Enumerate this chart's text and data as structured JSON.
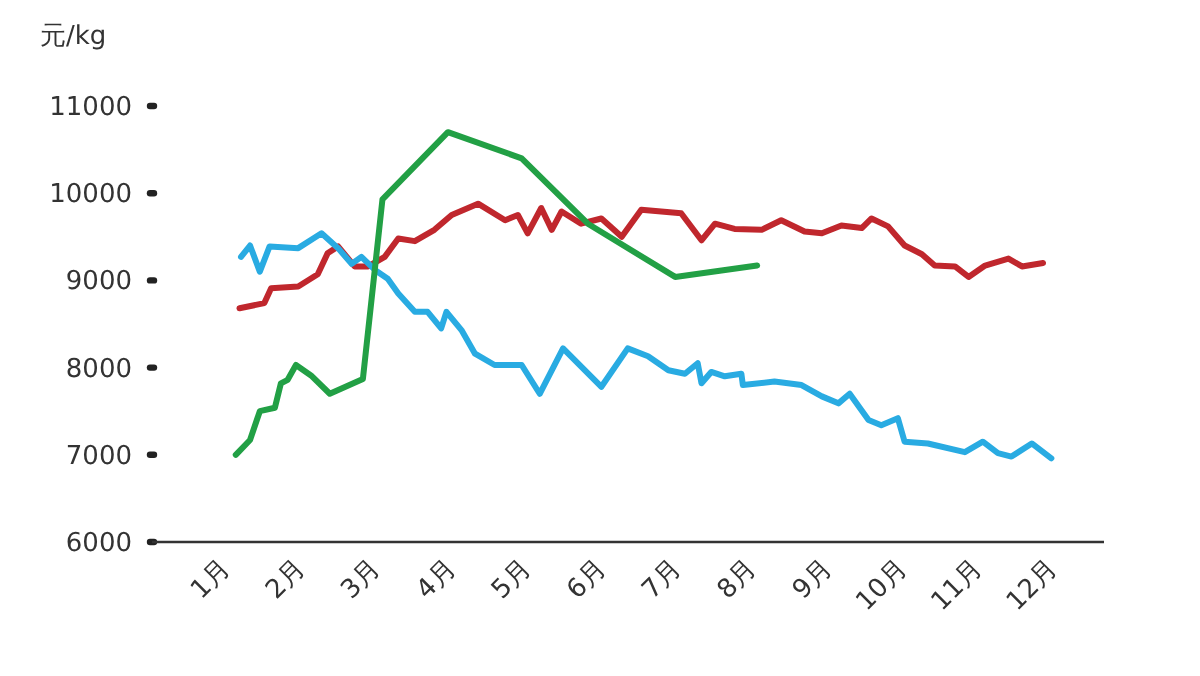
{
  "chart_data": {
    "type": "line",
    "ylabel": "元/kg",
    "xlim": [
      0,
      12.6
    ],
    "ylim": [
      6000,
      11000
    ],
    "yticks": [
      6000,
      7000,
      8000,
      9000,
      10000,
      11000
    ],
    "xticks": [
      {
        "value": 1,
        "label": "1月"
      },
      {
        "value": 2,
        "label": "2月"
      },
      {
        "value": 3,
        "label": "3月"
      },
      {
        "value": 4,
        "label": "4月"
      },
      {
        "value": 5,
        "label": "5月"
      },
      {
        "value": 6,
        "label": "6月"
      },
      {
        "value": 7,
        "label": "7月"
      },
      {
        "value": 8,
        "label": "8月"
      },
      {
        "value": 9,
        "label": "9月"
      },
      {
        "value": 10,
        "label": "10月"
      },
      {
        "value": 11,
        "label": "11月"
      },
      {
        "value": 12,
        "label": "12月"
      }
    ],
    "grid": false,
    "marker": "none",
    "line_style": "solid",
    "series": [
      {
        "color": "#c0272d",
        "x": [
          1.11,
          1.44,
          1.53,
          1.89,
          2.15,
          2.28,
          2.42,
          2.64,
          2.82,
          3.04,
          3.22,
          3.44,
          3.7,
          3.93,
          4.28,
          4.64,
          4.81,
          4.94,
          5.12,
          5.26,
          5.39,
          5.65,
          5.92,
          6.19,
          6.45,
          6.98,
          7.25,
          7.43,
          7.69,
          8.05,
          8.31,
          8.62,
          8.85,
          9.11,
          9.38,
          9.51,
          9.73,
          9.95,
          10.18,
          10.35,
          10.62,
          10.8,
          11.02,
          11.33,
          11.51,
          11.79
        ],
        "values": [
          8680,
          8740,
          8910,
          8930,
          9070,
          9310,
          9390,
          9160,
          9160,
          9270,
          9480,
          9450,
          9580,
          9750,
          9880,
          9690,
          9750,
          9540,
          9830,
          9580,
          9790,
          9650,
          9710,
          9500,
          9810,
          9770,
          9460,
          9650,
          9590,
          9580,
          9690,
          9560,
          9540,
          9630,
          9600,
          9710,
          9620,
          9400,
          9300,
          9170,
          9160,
          9040,
          9170,
          9250,
          9160,
          9200
        ]
      },
      {
        "color": "#29abe2",
        "x": [
          1.13,
          1.25,
          1.38,
          1.51,
          1.89,
          2.2,
          2.42,
          2.6,
          2.73,
          2.91,
          3.08,
          3.22,
          3.44,
          3.61,
          3.79,
          3.86,
          4.06,
          4.24,
          4.5,
          4.86,
          5.1,
          5.41,
          5.92,
          6.27,
          6.54,
          6.81,
          7.03,
          7.2,
          7.25,
          7.38,
          7.56,
          7.78,
          7.8,
          8.22,
          8.58,
          8.85,
          9.07,
          9.22,
          9.47,
          9.64,
          9.86,
          9.95,
          10.26,
          10.75,
          10.99,
          11.19,
          11.37,
          11.64,
          11.9
        ],
        "values": [
          9270,
          9400,
          9100,
          9390,
          9370,
          9540,
          9370,
          9190,
          9270,
          9120,
          9020,
          8850,
          8640,
          8640,
          8450,
          8640,
          8430,
          8160,
          8030,
          8030,
          7700,
          8220,
          7780,
          8220,
          8130,
          7970,
          7930,
          8050,
          7820,
          7950,
          7900,
          7930,
          7800,
          7840,
          7800,
          7670,
          7590,
          7700,
          7400,
          7340,
          7420,
          7150,
          7130,
          7030,
          7150,
          7020,
          6980,
          7130,
          6960
        ]
      },
      {
        "color": "#22a045",
        "x": [
          1.06,
          1.25,
          1.38,
          1.58,
          1.66,
          1.75,
          1.86,
          2.06,
          2.31,
          2.75,
          3.01,
          3.88,
          4.86,
          5.74,
          6.9,
          7.99
        ],
        "values": [
          7000,
          7170,
          7500,
          7540,
          7820,
          7860,
          8030,
          7910,
          7700,
          7870,
          9930,
          10700,
          10400,
          9650,
          9040,
          9170
        ]
      }
    ]
  }
}
